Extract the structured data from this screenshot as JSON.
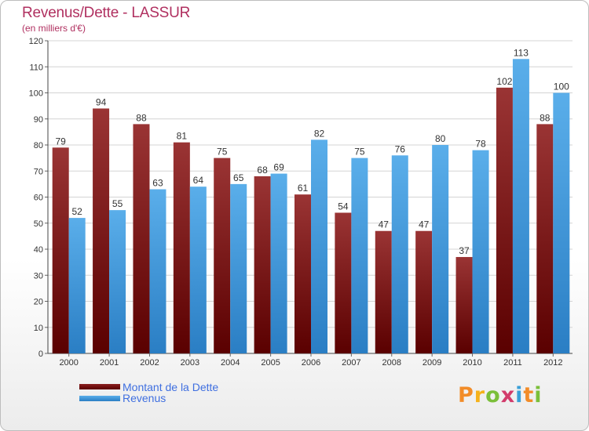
{
  "chart_title": "Revenus/Dette - LASSUR",
  "chart_subtitle": "(en milliers d'€)",
  "brand": {
    "logo_text": "Proxiti",
    "letters": [
      {
        "char": "P",
        "color": "#f28c28"
      },
      {
        "char": "r",
        "color": "#f5b21b"
      },
      {
        "char": "o",
        "color": "#7bbf3a"
      },
      {
        "char": "x",
        "color": "#d23b6b"
      },
      {
        "char": "i",
        "color": "#3aa0d8"
      },
      {
        "char": "t",
        "color": "#f28c28"
      },
      {
        "char": "i",
        "color": "#7bbf3a"
      }
    ]
  },
  "chart_data": {
    "type": "bar",
    "categories": [
      "2000",
      "2001",
      "2002",
      "2003",
      "2004",
      "2005",
      "2006",
      "2007",
      "2008",
      "2009",
      "2010",
      "2011",
      "2012"
    ],
    "series": [
      {
        "name": "Montant de la Dette",
        "color": "#7a1010",
        "values": [
          79,
          94,
          88,
          81,
          75,
          68,
          61,
          54,
          47,
          47,
          37,
          102,
          88
        ]
      },
      {
        "name": "Revenus",
        "color": "#3d9be0",
        "values": [
          52,
          55,
          63,
          64,
          65,
          69,
          82,
          75,
          76,
          80,
          78,
          113,
          100
        ]
      }
    ],
    "ylim": [
      0,
      120
    ],
    "yticks": [
      0,
      10,
      20,
      30,
      40,
      50,
      60,
      70,
      80,
      90,
      100,
      110,
      120
    ],
    "grid": true,
    "legend_position": "bottom-left"
  }
}
